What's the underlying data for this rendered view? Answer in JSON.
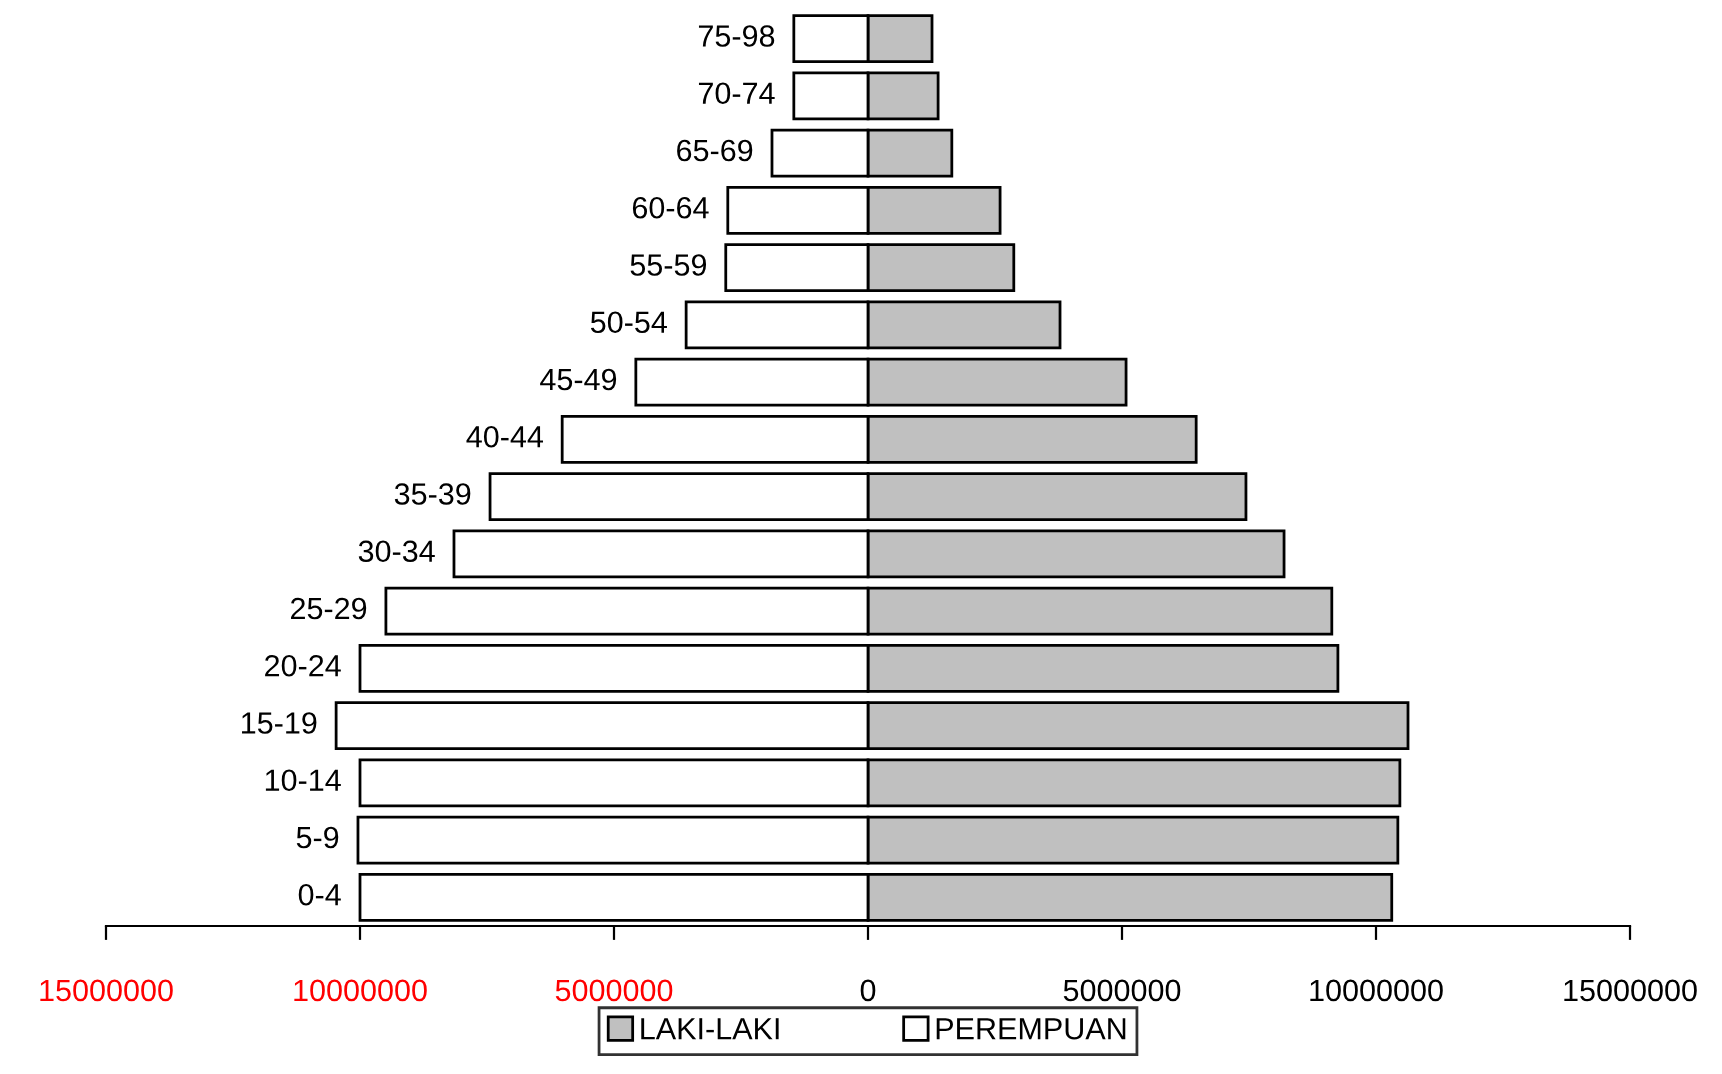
{
  "chart_data": {
    "type": "bar",
    "orientation": "horizontal",
    "categories": [
      "75-98",
      "70-74",
      "65-69",
      "60-64",
      "55-59",
      "50-54",
      "45-49",
      "40-44",
      "35-39",
      "30-34",
      "25-29",
      "20-24",
      "15-19",
      "10-14",
      "5-9",
      "0-4"
    ],
    "series": [
      {
        "name": "LAKI-LAKI",
        "color": "#c0c0c0",
        "values": [
          1260000,
          1380000,
          1650000,
          2600000,
          2870000,
          3780000,
          5080000,
          6460000,
          7440000,
          8190000,
          9130000,
          9250000,
          10630000,
          10470000,
          10430000,
          10310000
        ]
      },
      {
        "name": "PEREMPUAN",
        "color": "#ffffff",
        "values": [
          -1460000,
          -1460000,
          -1890000,
          -2760000,
          -2800000,
          -3580000,
          -4570000,
          -6020000,
          -7440000,
          -8150000,
          -9490000,
          -10000000,
          -10470000,
          -10000000,
          -10040000,
          -10000000
        ]
      }
    ],
    "xlim": [
      -15000000,
      15000000
    ],
    "xticks": [
      {
        "value": -15000000,
        "label": "15000000"
      },
      {
        "value": -10000000,
        "label": "10000000"
      },
      {
        "value": -5000000,
        "label": "5000000"
      },
      0,
      5000000,
      10000000,
      15000000
    ],
    "grid": false,
    "legend": "bottom",
    "stacked": true
  }
}
